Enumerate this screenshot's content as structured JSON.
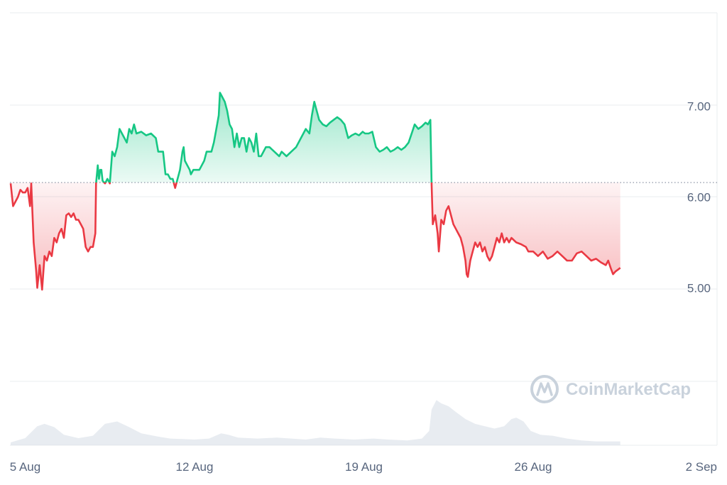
{
  "chart_data": {
    "type": "area",
    "baseline": 6.16,
    "ylim": [
      3.97,
      8.03
    ],
    "y_ticks": [
      {
        "value": 7.0,
        "label": "7.00"
      },
      {
        "value": 6.0,
        "label": "6.00"
      },
      {
        "value": 5.0,
        "label": "5.00"
      }
    ],
    "x_ticks": [
      {
        "day": 0,
        "label": "5 Aug"
      },
      {
        "day": 7,
        "label": "12 Aug"
      },
      {
        "day": 14,
        "label": "19 Aug"
      },
      {
        "day": 21,
        "label": "26 Aug"
      },
      {
        "day": 28,
        "label": "2 Sep"
      }
    ],
    "x_days_range": [
      -0.63,
      28.6
    ],
    "series": [
      {
        "values": [
          [
            -0.6,
            6.15
          ],
          [
            -0.5,
            5.9
          ],
          [
            -0.4,
            5.95
          ],
          [
            -0.3,
            6.0
          ],
          [
            -0.2,
            6.08
          ],
          [
            -0.1,
            6.05
          ],
          [
            0.0,
            6.05
          ],
          [
            0.1,
            6.1
          ],
          [
            0.2,
            5.9
          ],
          [
            0.25,
            6.15
          ],
          [
            0.35,
            5.5
          ],
          [
            0.45,
            5.2
          ],
          [
            0.5,
            5.0
          ],
          [
            0.6,
            5.25
          ],
          [
            0.7,
            4.98
          ],
          [
            0.8,
            5.35
          ],
          [
            0.9,
            5.3
          ],
          [
            1.0,
            5.4
          ],
          [
            1.1,
            5.35
          ],
          [
            1.2,
            5.55
          ],
          [
            1.3,
            5.5
          ],
          [
            1.4,
            5.6
          ],
          [
            1.5,
            5.65
          ],
          [
            1.6,
            5.55
          ],
          [
            1.7,
            5.8
          ],
          [
            1.8,
            5.82
          ],
          [
            1.9,
            5.78
          ],
          [
            2.0,
            5.82
          ],
          [
            2.1,
            5.75
          ],
          [
            2.2,
            5.75
          ],
          [
            2.3,
            5.7
          ],
          [
            2.4,
            5.65
          ],
          [
            2.5,
            5.45
          ],
          [
            2.6,
            5.4
          ],
          [
            2.7,
            5.45
          ],
          [
            2.8,
            5.45
          ],
          [
            2.9,
            5.6
          ],
          [
            2.93,
            6.15
          ],
          [
            3.0,
            6.35
          ],
          [
            3.05,
            6.2
          ],
          [
            3.1,
            6.3
          ],
          [
            3.15,
            6.3
          ],
          [
            3.2,
            6.18
          ],
          [
            3.3,
            6.15
          ],
          [
            3.4,
            6.2
          ],
          [
            3.5,
            6.15
          ],
          [
            3.6,
            6.5
          ],
          [
            3.7,
            6.45
          ],
          [
            3.8,
            6.55
          ],
          [
            3.9,
            6.75
          ],
          [
            4.0,
            6.7
          ],
          [
            4.1,
            6.65
          ],
          [
            4.2,
            6.6
          ],
          [
            4.3,
            6.75
          ],
          [
            4.4,
            6.7
          ],
          [
            4.5,
            6.8
          ],
          [
            4.6,
            6.7
          ],
          [
            4.8,
            6.72
          ],
          [
            5.0,
            6.68
          ],
          [
            5.2,
            6.7
          ],
          [
            5.4,
            6.65
          ],
          [
            5.5,
            6.5
          ],
          [
            5.7,
            6.5
          ],
          [
            5.8,
            6.25
          ],
          [
            5.9,
            6.25
          ],
          [
            6.0,
            6.2
          ],
          [
            6.1,
            6.2
          ],
          [
            6.2,
            6.1
          ],
          [
            6.3,
            6.2
          ],
          [
            6.4,
            6.3
          ],
          [
            6.5,
            6.5
          ],
          [
            6.55,
            6.55
          ],
          [
            6.6,
            6.4
          ],
          [
            6.7,
            6.35
          ],
          [
            6.8,
            6.3
          ],
          [
            6.85,
            6.25
          ],
          [
            6.95,
            6.3
          ],
          [
            7.1,
            6.3
          ],
          [
            7.2,
            6.3
          ],
          [
            7.3,
            6.35
          ],
          [
            7.4,
            6.4
          ],
          [
            7.5,
            6.5
          ],
          [
            7.6,
            6.5
          ],
          [
            7.7,
            6.5
          ],
          [
            7.8,
            6.6
          ],
          [
            7.9,
            6.75
          ],
          [
            8.0,
            6.9
          ],
          [
            8.05,
            7.15
          ],
          [
            8.15,
            7.1
          ],
          [
            8.25,
            7.05
          ],
          [
            8.35,
            6.95
          ],
          [
            8.45,
            6.8
          ],
          [
            8.55,
            6.75
          ],
          [
            8.65,
            6.55
          ],
          [
            8.75,
            6.7
          ],
          [
            8.85,
            6.55
          ],
          [
            8.95,
            6.65
          ],
          [
            9.05,
            6.65
          ],
          [
            9.15,
            6.5
          ],
          [
            9.25,
            6.65
          ],
          [
            9.35,
            6.6
          ],
          [
            9.45,
            6.5
          ],
          [
            9.55,
            6.7
          ],
          [
            9.65,
            6.45
          ],
          [
            9.75,
            6.45
          ],
          [
            9.85,
            6.5
          ],
          [
            9.95,
            6.55
          ],
          [
            10.1,
            6.55
          ],
          [
            10.3,
            6.5
          ],
          [
            10.5,
            6.45
          ],
          [
            10.6,
            6.5
          ],
          [
            10.8,
            6.45
          ],
          [
            11.0,
            6.5
          ],
          [
            11.2,
            6.55
          ],
          [
            11.4,
            6.65
          ],
          [
            11.6,
            6.75
          ],
          [
            11.75,
            6.7
          ],
          [
            11.85,
            6.9
          ],
          [
            11.95,
            7.05
          ],
          [
            12.05,
            6.95
          ],
          [
            12.15,
            6.85
          ],
          [
            12.3,
            6.8
          ],
          [
            12.45,
            6.78
          ],
          [
            12.6,
            6.82
          ],
          [
            12.75,
            6.85
          ],
          [
            12.9,
            6.88
          ],
          [
            13.05,
            6.85
          ],
          [
            13.2,
            6.8
          ],
          [
            13.35,
            6.65
          ],
          [
            13.5,
            6.68
          ],
          [
            13.65,
            6.7
          ],
          [
            13.8,
            6.68
          ],
          [
            13.95,
            6.72
          ],
          [
            14.05,
            6.7
          ],
          [
            14.2,
            6.7
          ],
          [
            14.35,
            6.72
          ],
          [
            14.5,
            6.55
          ],
          [
            14.65,
            6.5
          ],
          [
            14.8,
            6.52
          ],
          [
            14.95,
            6.55
          ],
          [
            15.1,
            6.5
          ],
          [
            15.25,
            6.52
          ],
          [
            15.4,
            6.55
          ],
          [
            15.55,
            6.52
          ],
          [
            15.7,
            6.55
          ],
          [
            15.85,
            6.6
          ],
          [
            16.0,
            6.72
          ],
          [
            16.1,
            6.8
          ],
          [
            16.25,
            6.75
          ],
          [
            16.4,
            6.78
          ],
          [
            16.55,
            6.82
          ],
          [
            16.65,
            6.8
          ],
          [
            16.75,
            6.85
          ],
          [
            16.8,
            6.15
          ],
          [
            16.85,
            5.7
          ],
          [
            16.95,
            5.8
          ],
          [
            17.05,
            5.6
          ],
          [
            17.1,
            5.4
          ],
          [
            17.2,
            5.75
          ],
          [
            17.3,
            5.7
          ],
          [
            17.4,
            5.85
          ],
          [
            17.5,
            5.9
          ],
          [
            17.6,
            5.8
          ],
          [
            17.7,
            5.7
          ],
          [
            17.8,
            5.65
          ],
          [
            17.9,
            5.6
          ],
          [
            18.0,
            5.55
          ],
          [
            18.1,
            5.45
          ],
          [
            18.2,
            5.3
          ],
          [
            18.25,
            5.15
          ],
          [
            18.3,
            5.12
          ],
          [
            18.4,
            5.3
          ],
          [
            18.5,
            5.4
          ],
          [
            18.6,
            5.5
          ],
          [
            18.7,
            5.45
          ],
          [
            18.8,
            5.5
          ],
          [
            18.9,
            5.4
          ],
          [
            19.0,
            5.45
          ],
          [
            19.1,
            5.35
          ],
          [
            19.2,
            5.3
          ],
          [
            19.3,
            5.35
          ],
          [
            19.4,
            5.45
          ],
          [
            19.5,
            5.55
          ],
          [
            19.6,
            5.5
          ],
          [
            19.7,
            5.6
          ],
          [
            19.8,
            5.5
          ],
          [
            19.9,
            5.55
          ],
          [
            20.0,
            5.5
          ],
          [
            20.1,
            5.55
          ],
          [
            20.3,
            5.5
          ],
          [
            20.5,
            5.48
          ],
          [
            20.7,
            5.45
          ],
          [
            20.8,
            5.4
          ],
          [
            21.0,
            5.4
          ],
          [
            21.2,
            5.35
          ],
          [
            21.4,
            5.4
          ],
          [
            21.6,
            5.32
          ],
          [
            21.8,
            5.35
          ],
          [
            22.0,
            5.4
          ],
          [
            22.2,
            5.35
          ],
          [
            22.4,
            5.3
          ],
          [
            22.6,
            5.3
          ],
          [
            22.8,
            5.38
          ],
          [
            23.0,
            5.4
          ],
          [
            23.2,
            5.35
          ],
          [
            23.4,
            5.3
          ],
          [
            23.6,
            5.32
          ],
          [
            23.8,
            5.28
          ],
          [
            24.0,
            5.25
          ],
          [
            24.1,
            5.3
          ],
          [
            24.2,
            5.22
          ],
          [
            24.3,
            5.15
          ],
          [
            24.4,
            5.18
          ],
          [
            24.5,
            5.2
          ],
          [
            24.6,
            5.22
          ]
        ]
      }
    ],
    "volume": {
      "min": 0,
      "max": 100,
      "values": [
        [
          -0.6,
          6
        ],
        [
          0.0,
          15
        ],
        [
          0.5,
          40
        ],
        [
          0.8,
          45
        ],
        [
          1.2,
          38
        ],
        [
          1.6,
          22
        ],
        [
          2.2,
          15
        ],
        [
          2.8,
          20
        ],
        [
          3.3,
          45
        ],
        [
          3.8,
          50
        ],
        [
          4.3,
          38
        ],
        [
          4.8,
          25
        ],
        [
          5.5,
          18
        ],
        [
          6.0,
          14
        ],
        [
          7.0,
          12
        ],
        [
          7.6,
          14
        ],
        [
          8.1,
          25
        ],
        [
          8.4,
          22
        ],
        [
          8.8,
          16
        ],
        [
          9.6,
          14
        ],
        [
          10.4,
          16
        ],
        [
          11.0,
          14
        ],
        [
          11.6,
          12
        ],
        [
          12.2,
          16
        ],
        [
          12.8,
          14
        ],
        [
          13.6,
          12
        ],
        [
          14.4,
          14
        ],
        [
          15.0,
          12
        ],
        [
          15.8,
          10
        ],
        [
          16.4,
          14
        ],
        [
          16.7,
          30
        ],
        [
          16.8,
          75
        ],
        [
          17.0,
          95
        ],
        [
          17.2,
          88
        ],
        [
          17.5,
          82
        ],
        [
          17.8,
          70
        ],
        [
          18.2,
          55
        ],
        [
          18.6,
          45
        ],
        [
          19.0,
          40
        ],
        [
          19.4,
          35
        ],
        [
          19.8,
          40
        ],
        [
          20.1,
          55
        ],
        [
          20.3,
          58
        ],
        [
          20.6,
          50
        ],
        [
          20.9,
          30
        ],
        [
          21.3,
          22
        ],
        [
          21.8,
          20
        ],
        [
          22.4,
          14
        ],
        [
          23.0,
          10
        ],
        [
          23.6,
          8
        ],
        [
          24.2,
          8
        ],
        [
          24.6,
          8
        ]
      ]
    },
    "colors": {
      "up": "#16c784",
      "down": "#ea3943",
      "up_fill": "#16c784",
      "down_fill": "#ea3943",
      "volume": "#d5dde5",
      "grid": "#e8ecef",
      "baseline": "#808a9d",
      "axis_text": "#58667e",
      "watermark": "#c9d2dc"
    },
    "grid": true
  },
  "watermark": {
    "text": "CoinMarketCap",
    "icon": "coinmarketcap-logo-icon"
  }
}
